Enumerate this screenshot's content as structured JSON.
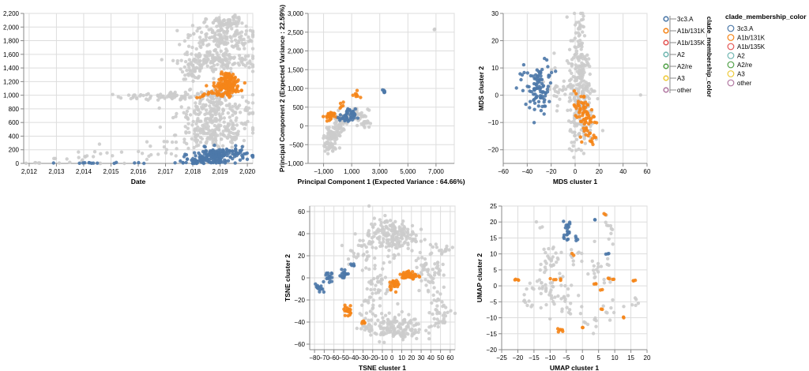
{
  "legend": {
    "title": "clade_membership_color",
    "items": [
      {
        "label": "3c3.A",
        "color": "#4c78a8"
      },
      {
        "label": "A1b/131K",
        "color": "#f58518"
      },
      {
        "label": "A1b/135K",
        "color": "#e45756"
      },
      {
        "label": "A2",
        "color": "#72b7b2"
      },
      {
        "label": "A2/re",
        "color": "#54a24b"
      },
      {
        "label": "A3",
        "color": "#eeca3b"
      },
      {
        "label": "other",
        "color": "#b279a2"
      }
    ]
  },
  "colors": {
    "gray": "#cccccc",
    "blue": "#4c78a8",
    "orange": "#f58518"
  },
  "chart_data": [
    {
      "id": "date",
      "type": "scatter",
      "xlabel": "Date",
      "ylabel": "",
      "xlim": [
        2011.8,
        2020.2
      ],
      "ylim": [
        0,
        2200
      ],
      "xticks": [
        2012,
        2013,
        2014,
        2015,
        2016,
        2017,
        2018,
        2019,
        2020
      ],
      "xticklabels": [
        "2,012",
        "2,013",
        "2,014",
        "2,015",
        "2,016",
        "2,017",
        "2,018",
        "2,019",
        "2,020"
      ],
      "yticks": [
        0,
        200,
        400,
        600,
        800,
        1000,
        1200,
        1400,
        1600,
        1800,
        2000,
        2200
      ],
      "yticklabels": [
        "0",
        "200",
        "400",
        "600",
        "800",
        "1,000",
        "1,200",
        "1,400",
        "1,600",
        "1,800",
        "2,000",
        "2,200"
      ],
      "series": [
        {
          "color": "gray",
          "clusters": [
            {
              "x": 2012.3,
              "y": 5,
              "sx": 0.2,
              "sy": 4,
              "n": 6
            },
            {
              "x": 2013.5,
              "y": 60,
              "sx": 0.5,
              "sy": 40,
              "n": 10
            },
            {
              "x": 2014.8,
              "y": 120,
              "sx": 0.6,
              "sy": 80,
              "n": 12
            },
            {
              "x": 2016.8,
              "y": 180,
              "sx": 0.4,
              "sy": 90,
              "n": 14
            },
            {
              "x": 2016.3,
              "y": 980,
              "sx": 0.6,
              "sy": 25,
              "n": 30
            },
            {
              "x": 2017.35,
              "y": 980,
              "sx": 0.25,
              "sy": 25,
              "n": 25
            },
            {
              "x": 2018.5,
              "y": 1000,
              "sx": 0.5,
              "sy": 40,
              "n": 40
            },
            {
              "x": 2018.8,
              "y": 780,
              "sx": 0.7,
              "sy": 130,
              "n": 180
            },
            {
              "x": 2018.8,
              "y": 420,
              "sx": 0.7,
              "sy": 110,
              "n": 160
            },
            {
              "x": 2018.0,
              "y": 1400,
              "sx": 0.2,
              "sy": 80,
              "n": 50
            },
            {
              "x": 2018.9,
              "y": 1500,
              "sx": 0.7,
              "sy": 90,
              "n": 160
            },
            {
              "x": 2019.0,
              "y": 1850,
              "sx": 0.6,
              "sy": 90,
              "n": 140
            },
            {
              "x": 2019.2,
              "y": 2060,
              "sx": 0.35,
              "sy": 40,
              "n": 60
            },
            {
              "x": 2019.5,
              "y": 2150,
              "sx": 0.05,
              "sy": 15,
              "n": 4
            }
          ]
        },
        {
          "color": "orange",
          "clusters": [
            {
              "x": 2019.25,
              "y": 1120,
              "sx": 0.25,
              "sy": 50,
              "n": 110
            },
            {
              "x": 2019.3,
              "y": 1250,
              "sx": 0.15,
              "sy": 40,
              "n": 50
            },
            {
              "x": 2018.4,
              "y": 1010,
              "sx": 0.1,
              "sy": 15,
              "n": 5
            },
            {
              "x": 2019.0,
              "y": 1000,
              "sx": 0.3,
              "sy": 20,
              "n": 14
            }
          ]
        },
        {
          "color": "blue",
          "clusters": [
            {
              "x": 2014.4,
              "y": 5,
              "sx": 0.4,
              "sy": 4,
              "n": 10
            },
            {
              "x": 2016.0,
              "y": 8,
              "sx": 0.4,
              "sy": 5,
              "n": 4
            },
            {
              "x": 2017.6,
              "y": 12,
              "sx": 0.3,
              "sy": 6,
              "n": 5
            },
            {
              "x": 2018.5,
              "y": 40,
              "sx": 0.4,
              "sy": 20,
              "n": 60
            },
            {
              "x": 2019.0,
              "y": 130,
              "sx": 0.5,
              "sy": 50,
              "n": 140
            }
          ]
        }
      ]
    },
    {
      "id": "pca",
      "type": "scatter",
      "xlabel": "Principal Component 1 (Expected Variance : 64.66%)",
      "ylabel": "Principal Component 2 (Expected Variance : 22.59%)",
      "xlim": [
        -2100,
        8300
      ],
      "ylim": [
        -1000,
        3000
      ],
      "xticks": [
        -1000,
        1000,
        3000,
        5000,
        7000
      ],
      "xticklabels": [
        "−1,000",
        "1,000",
        "3,000",
        "5,000",
        "7,000"
      ],
      "yticks": [
        -1000,
        -500,
        0,
        500,
        1000,
        1500,
        2000,
        2500,
        3000
      ],
      "yticklabels": [
        "−1,000",
        "−500",
        "0",
        "500",
        "1,000",
        "1,500",
        "2,000",
        "2,500",
        "3,000"
      ],
      "series": [
        {
          "color": "gray",
          "clusters": [
            {
              "x": -600,
              "y": -550,
              "sx": 250,
              "sy": 90,
              "n": 40
            },
            {
              "x": -400,
              "y": -250,
              "sx": 250,
              "sy": 80,
              "n": 50
            },
            {
              "x": 200,
              "y": 100,
              "sx": 300,
              "sy": 120,
              "n": 50
            },
            {
              "x": 1400,
              "y": 300,
              "sx": 400,
              "sy": 100,
              "n": 40
            },
            {
              "x": 1900,
              "y": 100,
              "sx": 200,
              "sy": 60,
              "n": 14
            },
            {
              "x": 6900,
              "y": 2550,
              "sx": 40,
              "sy": 30,
              "n": 2
            }
          ]
        },
        {
          "color": "orange",
          "clusters": [
            {
              "x": -600,
              "y": 250,
              "sx": 180,
              "sy": 70,
              "n": 30
            },
            {
              "x": 1300,
              "y": 820,
              "sx": 120,
              "sy": 60,
              "n": 8
            },
            {
              "x": 300,
              "y": 550,
              "sx": 80,
              "sy": 40,
              "n": 5
            }
          ]
        },
        {
          "color": "blue",
          "clusters": [
            {
              "x": 700,
              "y": 250,
              "sx": 280,
              "sy": 100,
              "n": 45
            },
            {
              "x": 3300,
              "y": 920,
              "sx": 40,
              "sy": 25,
              "n": 6
            }
          ]
        }
      ]
    },
    {
      "id": "mds",
      "type": "scatter",
      "xlabel": "MDS cluster 1",
      "ylabel": "MDS cluster 2",
      "xlim": [
        -60,
        60
      ],
      "ylim": [
        -25,
        30
      ],
      "xticks": [
        -60,
        -40,
        -20,
        0,
        20,
        40,
        60
      ],
      "xticklabels": [
        "−60",
        "−40",
        "−20",
        "0",
        "20",
        "40",
        "60"
      ],
      "yticks": [
        -20,
        -10,
        0,
        10,
        20,
        30
      ],
      "yticklabels": [
        "−20",
        "−10",
        "0",
        "10",
        "20",
        "30"
      ],
      "series": [
        {
          "color": "gray",
          "clusters": [
            {
              "x": 3,
              "y": 14,
              "sx": 4,
              "sy": 8,
              "n": 100
            },
            {
              "x": 6,
              "y": 0,
              "sx": 6,
              "sy": 6,
              "n": 120
            },
            {
              "x": 4,
              "y": -12,
              "sx": 5,
              "sy": 5,
              "n": 60
            },
            {
              "x": -15,
              "y": 3,
              "sx": 5,
              "sy": 5,
              "n": 25
            },
            {
              "x": 4,
              "y": 26,
              "sx": 2,
              "sy": 3,
              "n": 10
            },
            {
              "x": 55,
              "y": 0,
              "sx": 0.5,
              "sy": 0.5,
              "n": 1
            }
          ]
        },
        {
          "color": "orange",
          "clusters": [
            {
              "x": 5,
              "y": -5,
              "sx": 4,
              "sy": 3,
              "n": 40
            },
            {
              "x": 10,
              "y": -10,
              "sx": 3,
              "sy": 3,
              "n": 30
            },
            {
              "x": 14,
              "y": -16,
              "sx": 2,
              "sy": 1.5,
              "n": 8
            }
          ]
        },
        {
          "color": "blue",
          "clusters": [
            {
              "x": -30,
              "y": 2,
              "sx": 4,
              "sy": 4,
              "n": 80
            },
            {
              "x": -45,
              "y": 5,
              "sx": 4,
              "sy": 3,
              "n": 8
            },
            {
              "x": -22,
              "y": 10,
              "sx": 3,
              "sy": 3,
              "n": 8
            }
          ]
        }
      ]
    },
    {
      "id": "tsne",
      "type": "scatter",
      "xlabel": "TSNE cluster 1",
      "ylabel": "TSNE cluster 2",
      "xlim": [
        -85,
        65
      ],
      "ylim": [
        -65,
        65
      ],
      "xticks": [
        -80,
        -70,
        -60,
        -50,
        -40,
        -30,
        -20,
        -10,
        0,
        10,
        20,
        30,
        40,
        50,
        60
      ],
      "xticklabels": [
        "−80",
        "−70",
        "−60",
        "−50",
        "−40",
        "−30",
        "−20",
        "−10",
        "0",
        "10",
        "20",
        "30",
        "40",
        "50",
        "60"
      ],
      "yticks": [
        -60,
        -40,
        -20,
        0,
        20,
        40,
        60
      ],
      "yticklabels": [
        "−60",
        "−40",
        "−20",
        "0",
        "20",
        "40",
        "60"
      ],
      "series": [
        {
          "color": "gray",
          "clusters": [
            {
              "x": 0,
              "y": 38,
              "sx": 12,
              "sy": 8,
              "n": 170
            },
            {
              "x": 0,
              "y": -45,
              "sx": 16,
              "sy": 6,
              "n": 160
            },
            {
              "x": 40,
              "y": 8,
              "sx": 8,
              "sy": 10,
              "n": 60
            },
            {
              "x": 50,
              "y": -30,
              "sx": 6,
              "sy": 8,
              "n": 40
            },
            {
              "x": -15,
              "y": -5,
              "sx": 6,
              "sy": 10,
              "n": 40
            },
            {
              "x": -35,
              "y": 25,
              "sx": 7,
              "sy": 6,
              "n": 30
            },
            {
              "x": 55,
              "y": 25,
              "sx": 3,
              "sy": 3,
              "n": 10
            },
            {
              "x": -25,
              "y": -25,
              "sx": 5,
              "sy": 5,
              "n": 15
            },
            {
              "x": -20,
              "y": 40,
              "sx": 4,
              "sy": 4,
              "n": 10
            }
          ]
        },
        {
          "color": "orange",
          "clusters": [
            {
              "x": 18,
              "y": 2,
              "sx": 4,
              "sy": 2,
              "n": 55
            },
            {
              "x": 2,
              "y": -5,
              "sx": 3,
              "sy": 2.5,
              "n": 25
            },
            {
              "x": -45,
              "y": -30,
              "sx": 2.5,
              "sy": 2.5,
              "n": 20
            },
            {
              "x": -30,
              "y": -41,
              "sx": 1,
              "sy": 1,
              "n": 6
            }
          ]
        },
        {
          "color": "blue",
          "clusters": [
            {
              "x": -75,
              "y": -10,
              "sx": 2,
              "sy": 2,
              "n": 15
            },
            {
              "x": -65,
              "y": 0,
              "sx": 2,
              "sy": 4,
              "n": 15
            },
            {
              "x": -50,
              "y": 3,
              "sx": 2,
              "sy": 2.5,
              "n": 15
            },
            {
              "x": -40,
              "y": 12,
              "sx": 1.5,
              "sy": 1.5,
              "n": 5
            }
          ]
        }
      ]
    },
    {
      "id": "umap",
      "type": "scatter",
      "xlabel": "UMAP cluster 1",
      "ylabel": "UMAP cluster 2",
      "xlim": [
        -25,
        20
      ],
      "ylim": [
        -20,
        25
      ],
      "xticks": [
        -25,
        -20,
        -15,
        -10,
        -5,
        0,
        5,
        10,
        15,
        20
      ],
      "xticklabels": [
        "−25",
        "−20",
        "−15",
        "−10",
        "−5",
        "0",
        "5",
        "10",
        "15",
        "20"
      ],
      "yticks": [
        -20,
        -15,
        -10,
        -5,
        0,
        5,
        10,
        15,
        20,
        25
      ],
      "yticklabels": [
        "−20",
        "−15",
        "−10",
        "−5",
        "0",
        "5",
        "10",
        "15",
        "20",
        "25"
      ],
      "series": [
        {
          "color": "gray",
          "clusters": [
            {
              "x": -10,
              "y": 8,
              "sx": 2,
              "sy": 3,
              "n": 30
            },
            {
              "x": -12,
              "y": -2,
              "sx": 3,
              "sy": 3,
              "n": 30
            },
            {
              "x": -5,
              "y": -5,
              "sx": 3,
              "sy": 3,
              "n": 30
            },
            {
              "x": 5,
              "y": 4,
              "sx": 3,
              "sy": 3,
              "n": 20
            },
            {
              "x": 10,
              "y": -8,
              "sx": 2,
              "sy": 2,
              "n": 8
            },
            {
              "x": 16,
              "y": -5,
              "sx": 0.8,
              "sy": 1,
              "n": 5
            },
            {
              "x": 8,
              "y": 17,
              "sx": 1.5,
              "sy": 2,
              "n": 10
            },
            {
              "x": -13,
              "y": 18,
              "sx": 1,
              "sy": 1,
              "n": 3
            },
            {
              "x": 2,
              "y": -12,
              "sx": 2,
              "sy": 2,
              "n": 8
            },
            {
              "x": -2,
              "y": 8,
              "sx": 2,
              "sy": 2,
              "n": 10
            }
          ]
        },
        {
          "color": "orange",
          "clusters": [
            {
              "x": -20,
              "y": 2,
              "sx": 0.6,
              "sy": 0.3,
              "n": 4
            },
            {
              "x": -9,
              "y": 2,
              "sx": 1,
              "sy": 0.4,
              "n": 5
            },
            {
              "x": -7,
              "y": -14,
              "sx": 0.8,
              "sy": 0.6,
              "n": 6
            },
            {
              "x": 7,
              "y": 22.5,
              "sx": 0.2,
              "sy": 0.3,
              "n": 2
            },
            {
              "x": -3,
              "y": 10,
              "sx": 0.2,
              "sy": 0.3,
              "n": 2
            },
            {
              "x": 4,
              "y": 0.5,
              "sx": 0.4,
              "sy": 0.3,
              "n": 3
            },
            {
              "x": 9,
              "y": 2,
              "sx": 0.6,
              "sy": 0.3,
              "n": 4
            },
            {
              "x": 6,
              "y": -7,
              "sx": 0.2,
              "sy": 0.2,
              "n": 2
            },
            {
              "x": 13,
              "y": -10,
              "sx": 0.2,
              "sy": 0.2,
              "n": 2
            },
            {
              "x": 16,
              "y": 1.5,
              "sx": 0.3,
              "sy": 0.2,
              "n": 3
            },
            {
              "x": 0,
              "y": -13,
              "sx": 0.2,
              "sy": 0.2,
              "n": 2
            },
            {
              "x": 6,
              "y": -1,
              "sx": 0.3,
              "sy": 0.2,
              "n": 2
            }
          ]
        },
        {
          "color": "blue",
          "clusters": [
            {
              "x": -5,
              "y": 17,
              "sx": 0.8,
              "sy": 1.5,
              "n": 20
            },
            {
              "x": -2,
              "y": 15,
              "sx": 0.3,
              "sy": 0.4,
              "n": 4
            },
            {
              "x": 4,
              "y": 20.5,
              "sx": 0.2,
              "sy": 0.2,
              "n": 2
            },
            {
              "x": 8,
              "y": 10,
              "sx": 0.3,
              "sy": 0.2,
              "n": 3
            }
          ]
        }
      ]
    }
  ]
}
